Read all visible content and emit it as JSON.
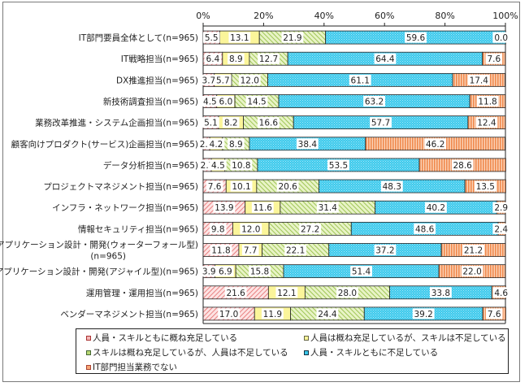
{
  "chart_data": {
    "type": "bar",
    "orientation": "horizontal",
    "stacked": "percent",
    "title": "",
    "xlabel": "",
    "ylabel": "",
    "xlim": [
      0,
      100
    ],
    "x_ticks": [
      "0%",
      "20%",
      "40%",
      "60%",
      "80%",
      "100%"
    ],
    "grid": false,
    "legend_position": "bottom",
    "categories": [
      "IT部門要員全体として(n=965)",
      "IT戦略担当(n=965)",
      "DX推進担当(n=965)",
      "新技術調査担当(n=965)",
      "業務改革推進・システム企画担当(n=965)",
      "顧客向けプロダクト(サービス)企画担当(n=965)",
      "データ分析担当(n=965)",
      "プロジェクトマネジメント担当(n=965)",
      "インフラ・ネットワーク担当(n=965)",
      "情報セキュリティ担当(n=965)",
      "アプリケーション設計・開発(ウォーターフォール型)(n=965)",
      "アプリケーション設計・開発(アジャイル型)(n=965)",
      "運用管理・運用担当(n=965)",
      "ベンダーマネジメント担当(n=965)"
    ],
    "category_lines": [
      [
        "IT部門要員全体として(n=965)"
      ],
      [
        "IT戦略担当(n=965)"
      ],
      [
        "DX推進担当(n=965)"
      ],
      [
        "新技術調査担当(n=965)"
      ],
      [
        "業務改革推進・システム企画担当(n=965)"
      ],
      [
        "顧客向けプロダクト(サービス)企画担当(n=965)"
      ],
      [
        "データ分析担当(n=965)"
      ],
      [
        "プロジェクトマネジメント担当(n=965)"
      ],
      [
        "インフラ・ネットワーク担当(n=965)"
      ],
      [
        "情報セキュリティ担当(n=965)"
      ],
      [
        "アプリケーション設計・開発(ウォーターフォール型)",
        "(n=965)"
      ],
      [
        "アプリケーション設計・開発(アジャイル型)(n=965)"
      ],
      [
        "運用管理・運用担当(n=965)"
      ],
      [
        "ベンダーマネジメント担当(n=965)"
      ]
    ],
    "series": [
      {
        "name": "人員・スキルともに概ね充足している",
        "color": "#f4b6b6",
        "pattern": "red-diagonal",
        "values": [
          5.5,
          6.4,
          3.7,
          4.5,
          5.1,
          2.2,
          2.7,
          7.6,
          13.9,
          9.8,
          11.8,
          3.9,
          21.6,
          17.0
        ]
      },
      {
        "name": "人員は概ね充足しているが、スキルは不足している",
        "color": "#fbf59a",
        "pattern": "yellow-solid",
        "values": [
          13.1,
          8.9,
          5.7,
          6.0,
          8.2,
          4.2,
          4.5,
          10.1,
          11.6,
          12.0,
          7.7,
          6.9,
          12.1,
          11.9
        ]
      },
      {
        "name": "スキルは概ね充足しているが、人員は不足している",
        "color": "#b9d874",
        "pattern": "green-diagonal",
        "values": [
          21.9,
          12.7,
          12.0,
          14.5,
          16.6,
          8.9,
          10.8,
          20.6,
          31.4,
          27.2,
          22.1,
          15.8,
          28.0,
          24.4
        ]
      },
      {
        "name": "人員・スキルともに不足している",
        "color": "#39c6e9",
        "pattern": "blue-dots",
        "values": [
          59.6,
          64.4,
          61.1,
          63.2,
          57.7,
          38.4,
          53.5,
          48.3,
          40.2,
          48.6,
          37.2,
          51.4,
          33.8,
          39.2
        ]
      },
      {
        "name": "IT部門担当業務でない",
        "color": "#f7a677",
        "pattern": "orange-vertical",
        "values": [
          0.0,
          7.6,
          17.4,
          11.8,
          12.4,
          46.2,
          28.6,
          13.5,
          2.9,
          2.4,
          21.2,
          22.0,
          4.6,
          7.6
        ]
      }
    ]
  }
}
